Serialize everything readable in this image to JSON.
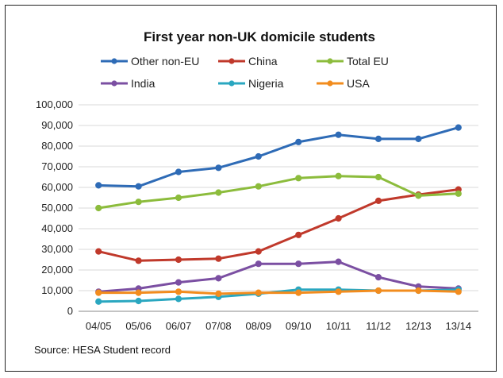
{
  "chart_data": {
    "type": "line",
    "title": "First year non-UK domicile students",
    "source": "Source: HESA Student record",
    "categories": [
      "04/05",
      "05/06",
      "06/07",
      "07/08",
      "08/09",
      "09/10",
      "10/11",
      "11/12",
      "12/13",
      "13/14"
    ],
    "ylim": [
      0,
      100000
    ],
    "yticks": [
      "0",
      "10,000",
      "20,000",
      "30,000",
      "40,000",
      "50,000",
      "60,000",
      "70,000",
      "80,000",
      "90,000",
      "100,000"
    ],
    "grid": true,
    "legend_position": "top",
    "series": [
      {
        "name": "Other non-EU",
        "color": "#2e6bb6",
        "values": [
          61000,
          60500,
          67500,
          69500,
          75000,
          82000,
          85500,
          83500,
          83500,
          89000
        ]
      },
      {
        "name": "China",
        "color": "#c0392b",
        "values": [
          29000,
          24500,
          25000,
          25500,
          29000,
          37000,
          45000,
          53500,
          56500,
          59000
        ]
      },
      {
        "name": "Total EU",
        "color": "#8cbc3c",
        "values": [
          50000,
          53000,
          55000,
          57500,
          60500,
          64500,
          65500,
          65000,
          56000,
          57000
        ]
      },
      {
        "name": "India",
        "color": "#7b4fa2",
        "values": [
          9500,
          11000,
          14000,
          16000,
          23000,
          23000,
          24000,
          16500,
          12000,
          11000
        ]
      },
      {
        "name": "Nigeria",
        "color": "#2aa7c0",
        "values": [
          4700,
          5000,
          6000,
          7000,
          8500,
          10500,
          10500,
          10000,
          10000,
          10500
        ]
      },
      {
        "name": "USA",
        "color": "#f28c1e",
        "values": [
          9000,
          9000,
          9500,
          8500,
          9000,
          9000,
          9500,
          10000,
          10000,
          9500
        ]
      }
    ]
  }
}
